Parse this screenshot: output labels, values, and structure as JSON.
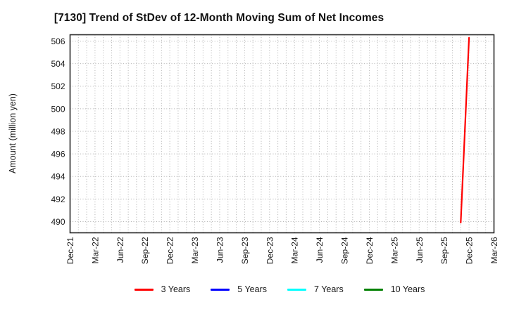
{
  "chart_data": {
    "type": "line",
    "title": "[7130]  Trend of StDev of 12-Month Moving Sum of Net Incomes",
    "ylabel": "Amount (million yen)",
    "x_tick_labels": [
      "Dec-21",
      "Mar-22",
      "Jun-22",
      "Sep-22",
      "Dec-22",
      "Mar-23",
      "Jun-23",
      "Sep-23",
      "Dec-23",
      "Mar-24",
      "Jun-24",
      "Sep-24",
      "Dec-24",
      "Mar-25",
      "Jun-25",
      "Sep-25",
      "Dec-25",
      "Mar-26"
    ],
    "x_months_start": "Dec-21",
    "x_months_total": 51,
    "y_ticks": [
      490,
      492,
      494,
      496,
      498,
      500,
      502,
      504,
      506
    ],
    "ylim": [
      489.0,
      506.56
    ],
    "grid": true,
    "grid_style": "dotted",
    "legend_position": "bottom-center",
    "series": [
      {
        "name": "3 Years",
        "color": "#ff0000",
        "points": [
          {
            "x": "Nov-25",
            "y": 489.9
          },
          {
            "x": "Dec-25",
            "y": 506.3
          }
        ]
      },
      {
        "name": "5 Years",
        "color": "#0000ff",
        "points": []
      },
      {
        "name": "7 Years",
        "color": "#00ffff",
        "points": []
      },
      {
        "name": "10 Years",
        "color": "#008000",
        "points": []
      }
    ]
  }
}
